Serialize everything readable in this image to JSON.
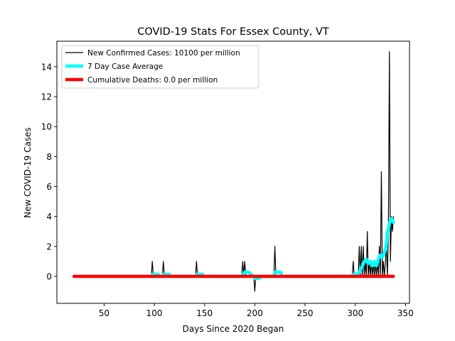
{
  "chart_data": {
    "type": "line",
    "title": "COVID-19 Stats For Essex County, VT",
    "xlabel": "Days Since 2020 Began",
    "ylabel": "New COVID-19 Cases",
    "xlim": [
      3,
      354
    ],
    "ylim": [
      -1.8,
      15.7
    ],
    "xticks": [
      50,
      100,
      150,
      200,
      250,
      300,
      350
    ],
    "yticks": [
      0,
      2,
      4,
      6,
      8,
      10,
      12,
      14
    ],
    "grid": false,
    "legend_position": "top-left",
    "series": [
      {
        "name": "New Confirmed Cases: 10100 per million",
        "color": "#000000",
        "style": "thin",
        "points": [
          [
            20,
            0
          ],
          [
            97,
            0
          ],
          [
            98,
            1
          ],
          [
            99,
            0
          ],
          [
            108,
            0
          ],
          [
            109,
            1
          ],
          [
            110,
            0
          ],
          [
            141,
            0
          ],
          [
            142,
            1
          ],
          [
            143,
            0
          ],
          [
            187,
            0
          ],
          [
            188,
            1
          ],
          [
            189,
            0
          ],
          [
            190,
            1
          ],
          [
            191,
            0
          ],
          [
            199,
            0
          ],
          [
            200,
            -1
          ],
          [
            201,
            0
          ],
          [
            219,
            0
          ],
          [
            220,
            2
          ],
          [
            221,
            0
          ],
          [
            297,
            0
          ],
          [
            298,
            1
          ],
          [
            299,
            0
          ],
          [
            303,
            0
          ],
          [
            304,
            2
          ],
          [
            305,
            0
          ],
          [
            306,
            2
          ],
          [
            307,
            0
          ],
          [
            308,
            2
          ],
          [
            309,
            0
          ],
          [
            310,
            1
          ],
          [
            311,
            0
          ],
          [
            312,
            3
          ],
          [
            313,
            0
          ],
          [
            314,
            1
          ],
          [
            315,
            0
          ],
          [
            316,
            1
          ],
          [
            317,
            0
          ],
          [
            318,
            1
          ],
          [
            319,
            0
          ],
          [
            320,
            1
          ],
          [
            321,
            0
          ],
          [
            322,
            1
          ],
          [
            323,
            0
          ],
          [
            324,
            2
          ],
          [
            325,
            0
          ],
          [
            326,
            7
          ],
          [
            327,
            0
          ],
          [
            328,
            1
          ],
          [
            329,
            0
          ],
          [
            330,
            1
          ],
          [
            331,
            2
          ],
          [
            332,
            0
          ],
          [
            333,
            3
          ],
          [
            334,
            15
          ],
          [
            335,
            1
          ],
          [
            336,
            4
          ],
          [
            337,
            3
          ],
          [
            338,
            4
          ]
        ]
      },
      {
        "name": "7 Day Case Average",
        "color": "#00ffff",
        "style": "thick",
        "points": [
          [
            97,
            0
          ],
          [
            98,
            0.14
          ],
          [
            104,
            0.14
          ],
          [
            105,
            0
          ],
          [
            108,
            0
          ],
          [
            109,
            0.14
          ],
          [
            115,
            0.14
          ],
          [
            116,
            0
          ],
          [
            141,
            0
          ],
          [
            142,
            0.14
          ],
          [
            148,
            0.14
          ],
          [
            149,
            0
          ],
          [
            187,
            0
          ],
          [
            188,
            0.14
          ],
          [
            190,
            0.28
          ],
          [
            194,
            0.28
          ],
          [
            196,
            0.14
          ],
          [
            199,
            0
          ],
          [
            200,
            -0.14
          ],
          [
            204,
            -0.14
          ],
          [
            207,
            0
          ],
          [
            219,
            0
          ],
          [
            220,
            0.28
          ],
          [
            226,
            0.28
          ],
          [
            227,
            0
          ],
          [
            297,
            0
          ],
          [
            298,
            0.14
          ],
          [
            303,
            0.14
          ],
          [
            305,
            0.43
          ],
          [
            307,
            0.71
          ],
          [
            309,
            1.0
          ],
          [
            311,
            1.14
          ],
          [
            313,
            0.86
          ],
          [
            315,
            1.0
          ],
          [
            317,
            0.71
          ],
          [
            319,
            1.0
          ],
          [
            321,
            0.71
          ],
          [
            323,
            1.14
          ],
          [
            325,
            1.43
          ],
          [
            327,
            1.29
          ],
          [
            329,
            1.57
          ],
          [
            330,
            1.86
          ],
          [
            331,
            2.14
          ],
          [
            332,
            3.0
          ],
          [
            333,
            3.14
          ],
          [
            334,
            3.57
          ],
          [
            336,
            3.86
          ],
          [
            338,
            3.6
          ]
        ]
      },
      {
        "name": "Cumulative Deaths: 0.0 per million",
        "color": "#ff0000",
        "style": "thicker",
        "points": [
          [
            20,
            0
          ],
          [
            338,
            0
          ]
        ]
      }
    ]
  }
}
